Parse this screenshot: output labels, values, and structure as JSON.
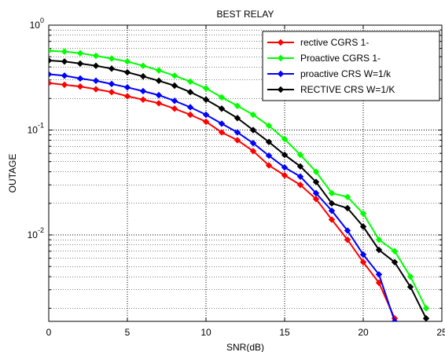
{
  "chart_data": {
    "type": "line",
    "title": "BEST RELAY",
    "xlabel": "SNR(dB)",
    "ylabel": "OUTAGE",
    "xlim": [
      0,
      25
    ],
    "ylim": [
      0.0015,
      1
    ],
    "yscale": "log",
    "x_ticks": [
      0,
      5,
      10,
      15,
      20,
      25
    ],
    "x_tick_labels": [
      "0",
      "5",
      "10",
      "15",
      "20",
      "25"
    ],
    "y_ticks": [
      {
        "value": 1,
        "base": "10",
        "exp": "0"
      },
      {
        "value": 0.1,
        "base": "10",
        "exp": "-1"
      },
      {
        "value": 0.01,
        "base": "10",
        "exp": "-2"
      }
    ],
    "grid": true,
    "legend_position": "top-right",
    "x": [
      0,
      1,
      2,
      3,
      4,
      5,
      6,
      7,
      8,
      9,
      10,
      11,
      12,
      13,
      14,
      15,
      16,
      17,
      18,
      19,
      20,
      21,
      22,
      23,
      24
    ],
    "series": [
      {
        "name": "rective CGRS 1-",
        "color": "#ff0000",
        "values": [
          0.28,
          0.27,
          0.26,
          0.245,
          0.23,
          0.21,
          0.195,
          0.18,
          0.16,
          0.14,
          0.12,
          0.095,
          0.08,
          0.063,
          0.046,
          0.037,
          0.03,
          0.022,
          0.014,
          0.009,
          0.0055,
          0.0035,
          0.0016,
          null,
          null
        ]
      },
      {
        "name": "Proactive CGRS 1-",
        "color": "#00ff00",
        "values": [
          0.57,
          0.56,
          0.54,
          0.51,
          0.48,
          0.45,
          0.41,
          0.37,
          0.33,
          0.29,
          0.25,
          0.205,
          0.17,
          0.14,
          0.11,
          0.082,
          0.058,
          0.04,
          0.025,
          0.023,
          0.016,
          0.009,
          0.007,
          0.004,
          0.002
        ]
      },
      {
        "name": "proactive CRS W=1/k",
        "color": "#0000ff",
        "values": [
          0.34,
          0.33,
          0.31,
          0.295,
          0.275,
          0.255,
          0.235,
          0.215,
          0.19,
          0.165,
          0.14,
          0.115,
          0.095,
          0.075,
          0.057,
          0.044,
          0.036,
          0.025,
          0.017,
          0.011,
          0.0065,
          0.0042,
          0.0015,
          null,
          null
        ]
      },
      {
        "name": "RECTIVE CRS W=1/K",
        "color": "#000000",
        "values": [
          0.46,
          0.45,
          0.43,
          0.41,
          0.385,
          0.355,
          0.325,
          0.295,
          0.265,
          0.23,
          0.195,
          0.16,
          0.13,
          0.1,
          0.077,
          0.058,
          0.045,
          0.032,
          0.02,
          0.018,
          0.012,
          0.0072,
          0.0055,
          0.0032,
          0.0016
        ]
      }
    ]
  }
}
